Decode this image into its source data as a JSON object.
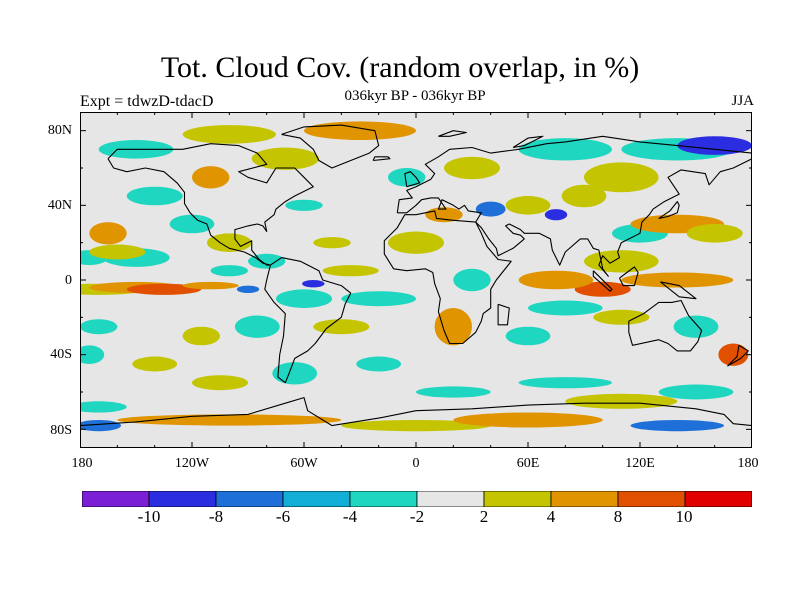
{
  "title": "Tot. Cloud Cov. (random overlap, in %)",
  "subtitle": "036kyr BP - 036kyr BP",
  "expt_label": "Expt = tdwzD-tdacD",
  "season": "JJA",
  "lat_labels": [
    "80N",
    "40N",
    "0",
    "40S",
    "80S"
  ],
  "lon_labels": [
    "180",
    "120W",
    "60W",
    "0",
    "60E",
    "120E",
    "180"
  ],
  "colorbar": {
    "labels": [
      "-10",
      "-8",
      "-6",
      "-4",
      "-2",
      "2",
      "4",
      "8",
      "10"
    ],
    "colors": [
      "#7b1fd6",
      "#2a2ee0",
      "#1e70d8",
      "#12aed6",
      "#1fd6c1",
      "#e6e6e6",
      "#c4c400",
      "#e09400",
      "#e05000",
      "#e00000"
    ]
  },
  "map_colors": {
    "background": "#e6e6e6",
    "coast": "#000000",
    "frame": "#000000"
  }
}
